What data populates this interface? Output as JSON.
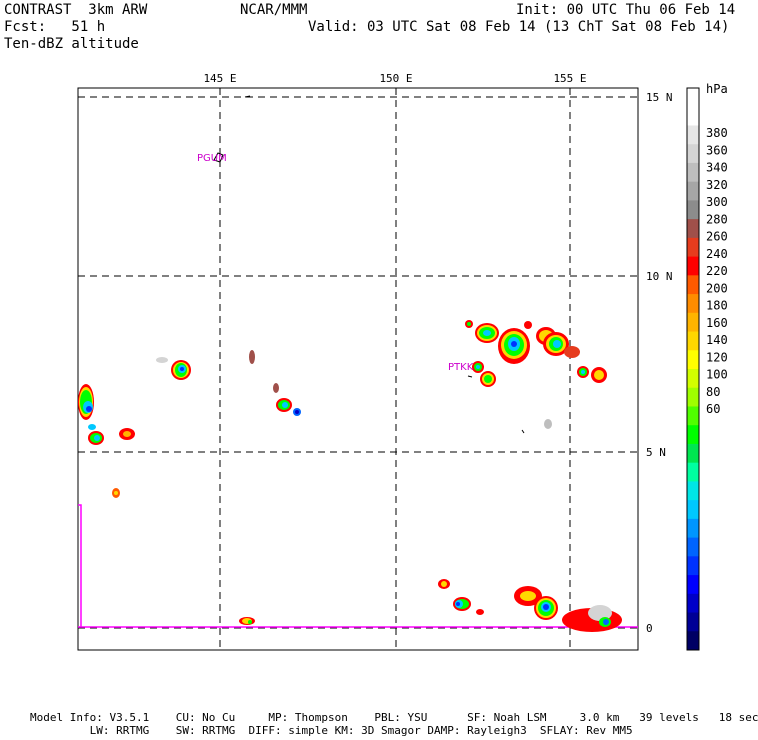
{
  "header": {
    "model": "CONTRAST  3km ARW",
    "org": "NCAR/MMM",
    "init": "Init: 00 UTC Thu 06 Feb 14",
    "fcst": "Fcst:   51 h",
    "valid": "Valid: 03 UTC Sat 08 Feb 14 (13 ChT Sat 08 Feb 14)",
    "field": "Ten-dBZ altitude"
  },
  "map": {
    "lon_labels": [
      "145 E",
      "150 E",
      "155 E"
    ],
    "lat_labels": [
      "15 N",
      "10 N",
      "5 N",
      "0"
    ],
    "stations": [
      {
        "id": "PGUM",
        "color": "#cc00cc"
      },
      {
        "id": "PTKK",
        "color": "#cc00cc"
      }
    ]
  },
  "colorbar": {
    "unit": "hPa",
    "labels": [
      "380",
      "360",
      "340",
      "320",
      "300",
      "280",
      "260",
      "240",
      "220",
      "200",
      "180",
      "160",
      "140",
      "120",
      "100",
      "80",
      "60"
    ],
    "colors": [
      "#ffffff",
      "#ffffff",
      "#e6e6e6",
      "#d4d4d4",
      "#bebebe",
      "#a6a6a6",
      "#8c8c8c",
      "#a0504a",
      "#e63c1e",
      "#ff0000",
      "#ff5a00",
      "#ff8c00",
      "#ffb400",
      "#ffd700",
      "#ffff00",
      "#d2ff00",
      "#a0ff00",
      "#50ff00",
      "#00ff00",
      "#00e650",
      "#00ffa0",
      "#00e6e6",
      "#00c8ff",
      "#0096ff",
      "#0064ff",
      "#0032ff",
      "#0000ff",
      "#0000c8",
      "#000096",
      "#000064"
    ]
  },
  "footer": {
    "line1": "Model Info: V3.5.1    CU: No Cu     MP: Thompson    PBL: YSU      SF: Noah LSM     3.0 km   39 levels   18 sec",
    "line2": "         LW: RRTMG    SW: RRTMG  DIFF: simple KM: 3D Smagor DAMP: Rayleigh3  SFLAY: Rev MM5"
  }
}
